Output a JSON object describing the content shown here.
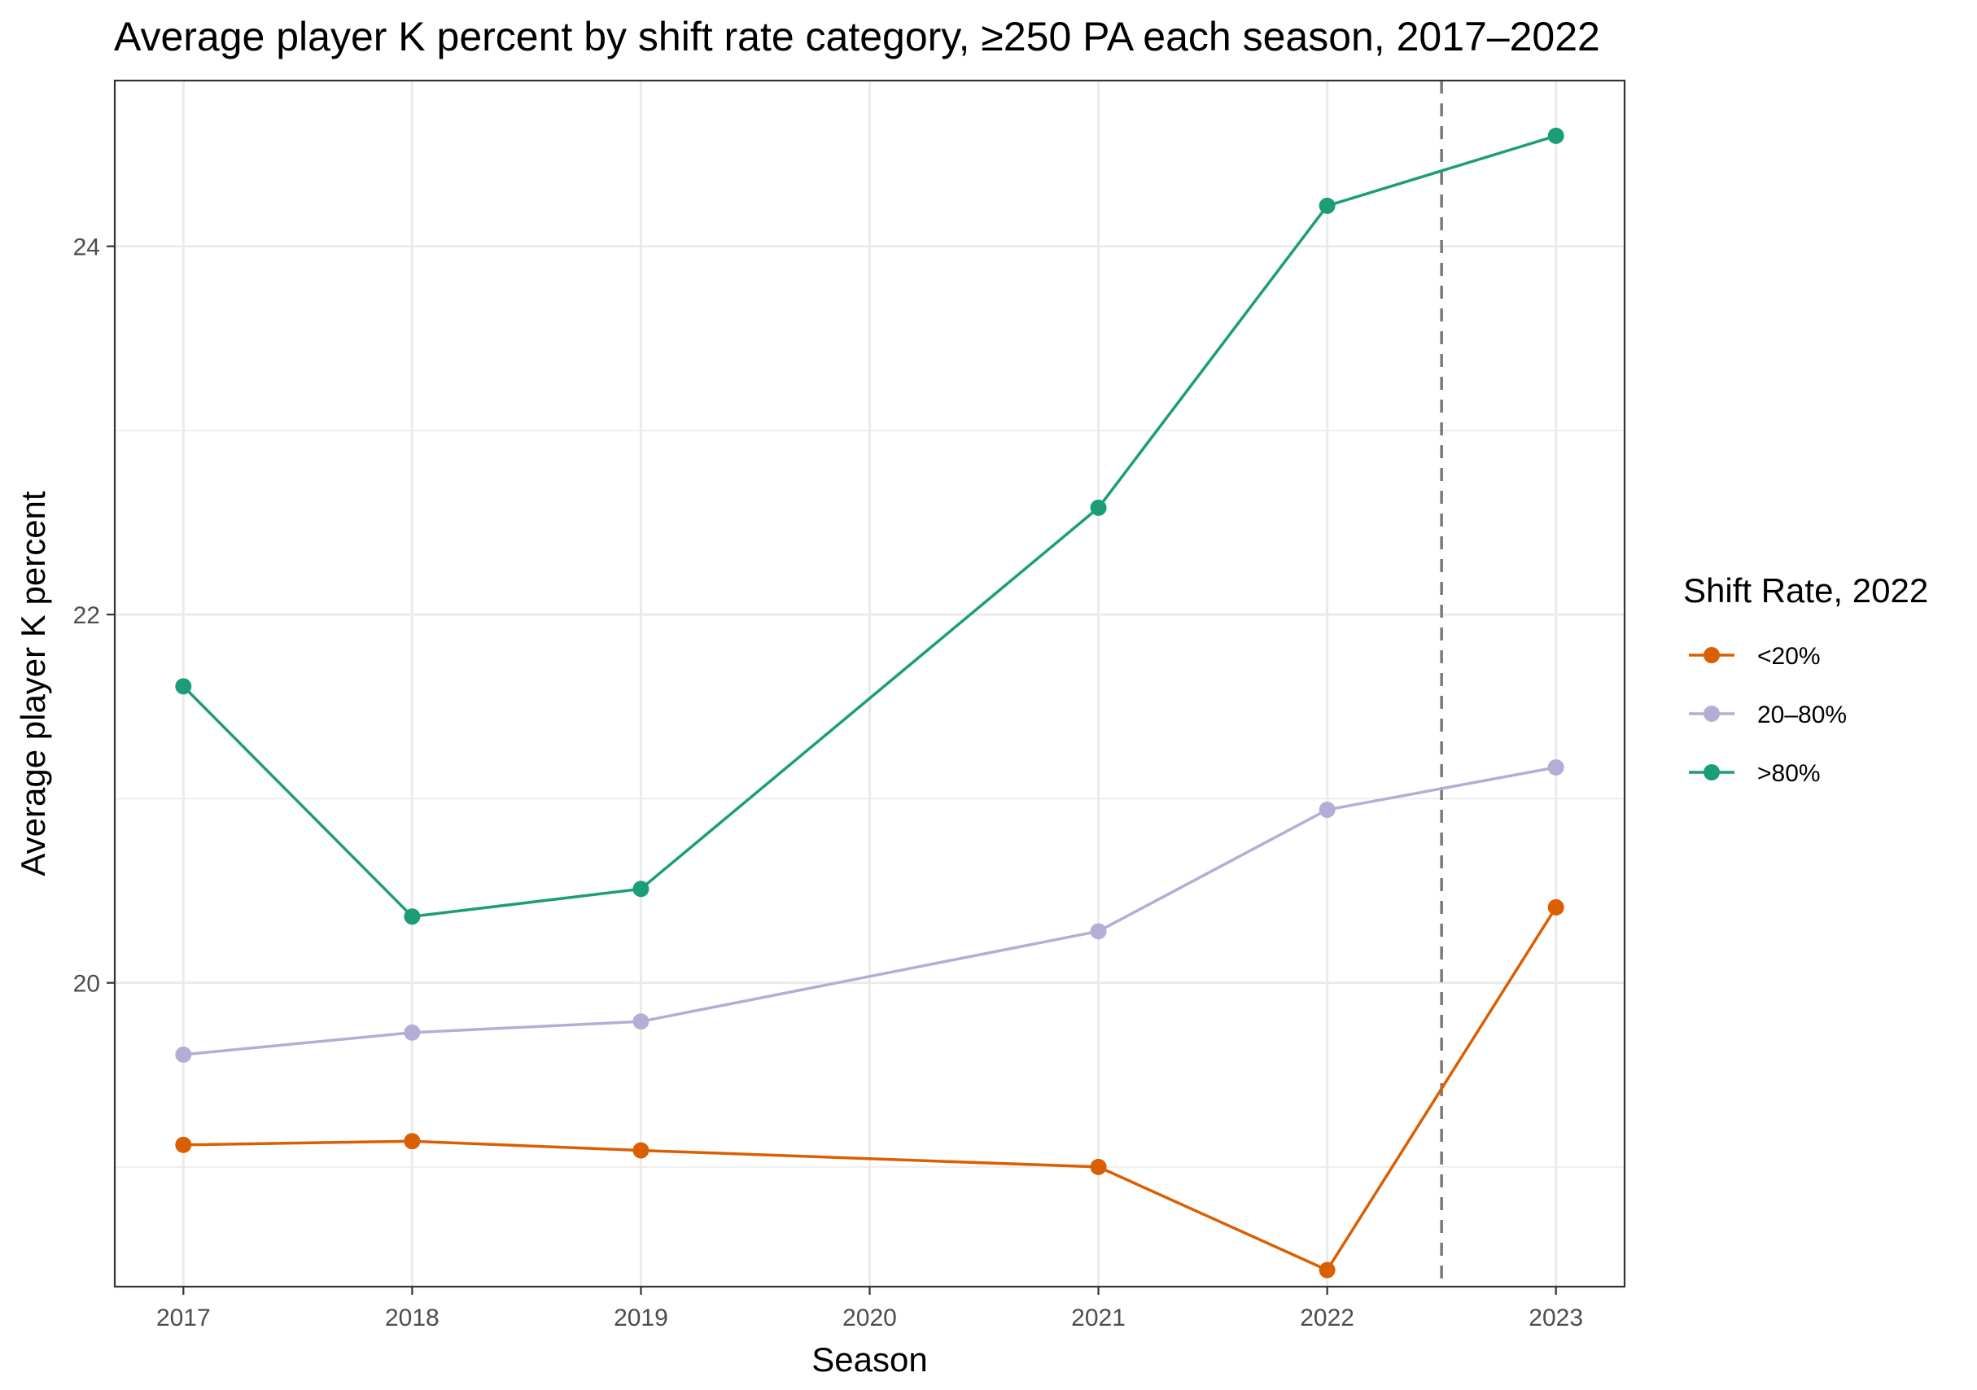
{
  "chart_data": {
    "type": "line",
    "title": "Average player K percent by shift rate category, ≥250 PA each season, 2017–2022",
    "xlabel": "Season",
    "ylabel": "Average player K percent",
    "x": [
      2017,
      2018,
      2019,
      2020,
      2021,
      2022,
      2023
    ],
    "x_tick_labels": [
      "2017",
      "2018",
      "2019",
      "2020",
      "2021",
      "2022",
      "2023"
    ],
    "xlim": [
      2016.7,
      2023.3
    ],
    "ylim": [
      18.35,
      24.9
    ],
    "y_ticks": [
      20,
      22,
      24
    ],
    "y_tick_labels": [
      "20",
      "22",
      "24"
    ],
    "y_minor_ticks": [
      19,
      21,
      23
    ],
    "grid": true,
    "reference_line": {
      "x": 2022.5,
      "style": "dashed",
      "color": "#7a7a7a"
    },
    "legend": {
      "title": "Shift Rate, 2022",
      "position": "right"
    },
    "series": [
      {
        "name": "<20%",
        "color": "#d95f02",
        "opacity": 1.0,
        "x": [
          2017,
          2018,
          2019,
          2021,
          2022,
          2023
        ],
        "values": [
          19.12,
          19.14,
          19.09,
          19.0,
          18.44,
          20.41
        ]
      },
      {
        "name": "20–80%",
        "color": "#b3aed6",
        "opacity": 1.0,
        "x": [
          2017,
          2018,
          2019,
          2021,
          2022,
          2023
        ],
        "values": [
          19.61,
          19.73,
          19.79,
          20.28,
          20.94,
          21.17
        ]
      },
      {
        "name": ">80%",
        "color": "#1b9e77",
        "opacity": 1.0,
        "x": [
          2017,
          2018,
          2019,
          2021,
          2022,
          2023
        ],
        "values": [
          21.61,
          20.36,
          20.51,
          22.58,
          24.22,
          24.6
        ]
      }
    ]
  }
}
